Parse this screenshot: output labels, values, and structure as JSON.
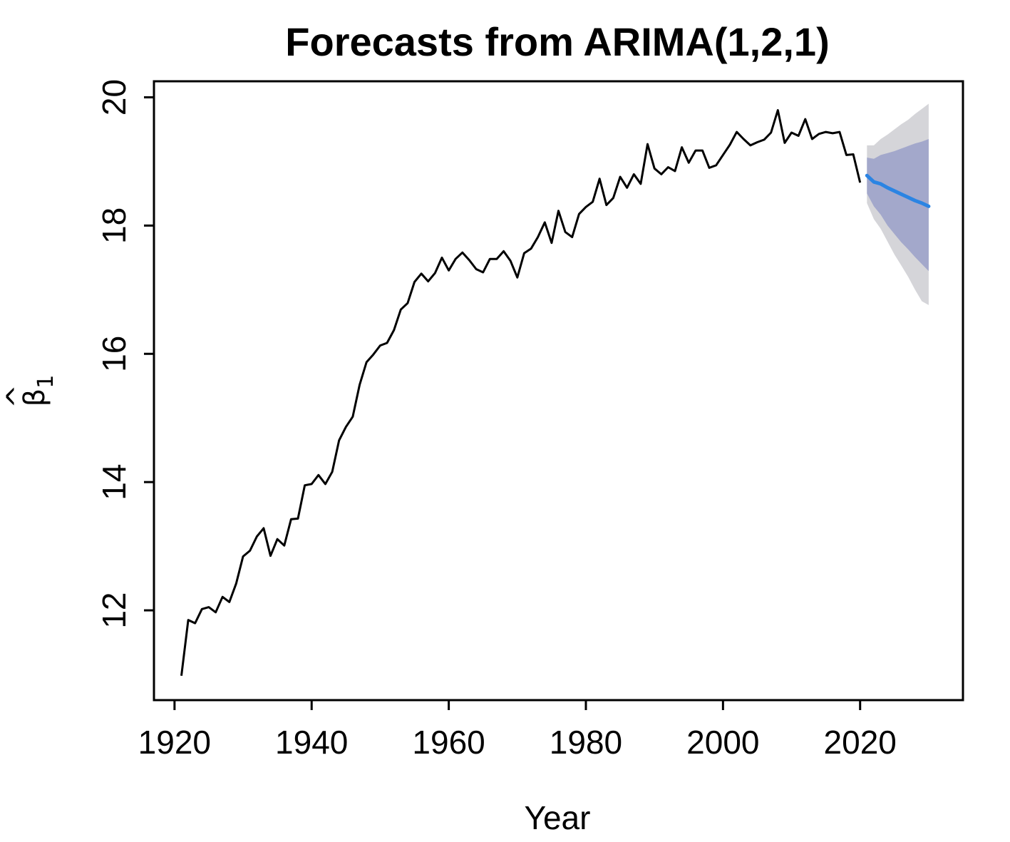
{
  "chart_data": {
    "type": "line",
    "title": "Forecasts from ARIMA(1,2,1)",
    "xlabel": "Year",
    "ylabel": "β̂₁",
    "ylabel_parts": {
      "hat": "^",
      "base": "β",
      "sub": "1"
    },
    "xlim": [
      1917,
      2035
    ],
    "ylim": [
      10.6,
      20.25
    ],
    "xticks": [
      1920,
      1940,
      1960,
      1980,
      2000,
      2020
    ],
    "yticks": [
      12,
      14,
      16,
      18,
      20
    ],
    "colors": {
      "history": "#000000",
      "forecast": "#2b84e3",
      "band80": "#a3a8cb",
      "band95": "#d5d5d9"
    },
    "series": [
      {
        "name": "observed",
        "x": [
          1921,
          1922,
          1923,
          1924,
          1925,
          1926,
          1927,
          1928,
          1929,
          1930,
          1931,
          1932,
          1933,
          1934,
          1935,
          1936,
          1937,
          1938,
          1939,
          1940,
          1941,
          1942,
          1943,
          1944,
          1945,
          1946,
          1947,
          1948,
          1949,
          1950,
          1951,
          1952,
          1953,
          1954,
          1955,
          1956,
          1957,
          1958,
          1959,
          1960,
          1961,
          1962,
          1963,
          1964,
          1965,
          1966,
          1967,
          1968,
          1969,
          1970,
          1971,
          1972,
          1973,
          1974,
          1975,
          1976,
          1977,
          1978,
          1979,
          1980,
          1981,
          1982,
          1983,
          1984,
          1985,
          1986,
          1987,
          1988,
          1989,
          1990,
          1991,
          1992,
          1993,
          1994,
          1995,
          1996,
          1997,
          1998,
          1999,
          2000,
          2001,
          2002,
          2003,
          2004,
          2005,
          2006,
          2007,
          2008,
          2009,
          2010,
          2011,
          2012,
          2013,
          2014,
          2015,
          2016,
          2017,
          2018,
          2019,
          2020
        ],
        "values": [
          10.98,
          11.85,
          11.8,
          12.02,
          12.05,
          11.97,
          12.21,
          12.13,
          12.42,
          12.84,
          12.93,
          13.15,
          13.28,
          12.85,
          13.11,
          13.01,
          13.42,
          13.43,
          13.95,
          13.97,
          14.11,
          13.97,
          14.16,
          14.65,
          14.86,
          15.02,
          15.52,
          15.87,
          15.99,
          16.13,
          16.17,
          16.37,
          16.69,
          16.79,
          17.12,
          17.25,
          17.13,
          17.26,
          17.5,
          17.3,
          17.48,
          17.58,
          17.46,
          17.32,
          17.27,
          17.48,
          17.48,
          17.6,
          17.45,
          17.19,
          17.57,
          17.64,
          17.82,
          18.05,
          17.73,
          18.23,
          17.9,
          17.82,
          18.18,
          18.29,
          18.37,
          18.73,
          18.32,
          18.43,
          18.76,
          18.59,
          18.8,
          18.65,
          19.27,
          18.89,
          18.8,
          18.91,
          18.85,
          19.22,
          18.98,
          19.17,
          19.17,
          18.9,
          18.94,
          19.1,
          19.26,
          19.46,
          19.35,
          19.25,
          19.3,
          19.34,
          19.45,
          19.8,
          19.29,
          19.45,
          19.4,
          19.66,
          19.35,
          19.43,
          19.46,
          19.44,
          19.46,
          19.1,
          19.11,
          18.67
        ]
      },
      {
        "name": "forecast",
        "x": [
          2021,
          2022,
          2023,
          2024,
          2025,
          2026,
          2027,
          2028,
          2029,
          2030
        ],
        "values": [
          18.78,
          18.68,
          18.65,
          18.59,
          18.54,
          18.49,
          18.44,
          18.39,
          18.35,
          18.3
        ],
        "lo80": [
          18.5,
          18.3,
          18.17,
          18.0,
          17.87,
          17.74,
          17.63,
          17.51,
          17.4,
          17.29
        ],
        "hi80": [
          19.06,
          19.04,
          19.1,
          19.13,
          19.16,
          19.2,
          19.24,
          19.28,
          19.31,
          19.35
        ],
        "lo95": [
          18.35,
          18.1,
          17.95,
          17.75,
          17.55,
          17.38,
          17.2,
          17.0,
          16.82,
          16.76
        ],
        "hi95": [
          19.25,
          19.25,
          19.35,
          19.42,
          19.5,
          19.58,
          19.65,
          19.74,
          19.82,
          19.9
        ]
      }
    ]
  }
}
